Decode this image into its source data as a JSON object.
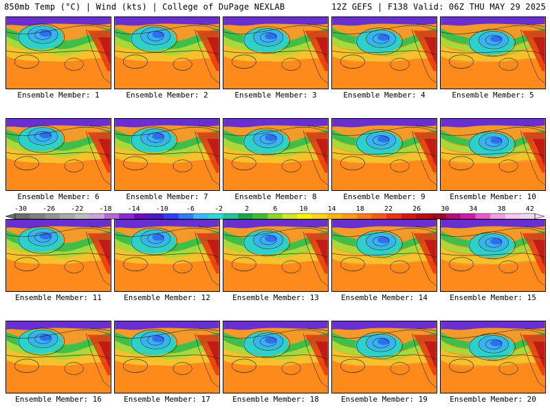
{
  "header": {
    "left": "850mb Temp (°C) | Wind (kts) | College of DuPage NEXLAB",
    "right": "12Z GEFS | F138 Valid: 06Z THU MAY 29 2025"
  },
  "members": [
    "Ensemble Member: 1",
    "Ensemble Member: 2",
    "Ensemble Member: 3",
    "Ensemble Member: 4",
    "Ensemble Member: 5",
    "Ensemble Member: 6",
    "Ensemble Member: 7",
    "Ensemble Member: 8",
    "Ensemble Member: 9",
    "Ensemble Member: 10",
    "Ensemble Member: 11",
    "Ensemble Member: 12",
    "Ensemble Member: 13",
    "Ensemble Member: 14",
    "Ensemble Member: 15",
    "Ensemble Member: 16",
    "Ensemble Member: 17",
    "Ensemble Member: 18",
    "Ensemble Member: 19",
    "Ensemble Member: 20"
  ],
  "colorbar": {
    "labels": [
      "-30",
      "-26",
      "-22",
      "-18",
      "-14",
      "-10",
      "-6",
      "-2",
      "2",
      "6",
      "10",
      "14",
      "18",
      "22",
      "26",
      "30",
      "34",
      "38",
      "42"
    ],
    "colors": [
      "#6e6e6e",
      "#808080",
      "#949494",
      "#a8a8a8",
      "#bdbdbd",
      "#c9a4de",
      "#b06ad4",
      "#8b2ad0",
      "#6a0fbf",
      "#4b18c6",
      "#2f3ff2",
      "#2f7cf5",
      "#39b8f5",
      "#2fd6d6",
      "#21c59a",
      "#16a84a",
      "#3fbf2f",
      "#8fd62a",
      "#cfe62b",
      "#fff200",
      "#ffd21f",
      "#ffb31a",
      "#ff9a1a",
      "#ff7b14",
      "#f75a10",
      "#e8350f",
      "#d21a12",
      "#b80f16",
      "#9c0c1e",
      "#b0107a",
      "#d11aa8",
      "#e85ac8",
      "#f0a0e0",
      "#f6c8ee",
      "#f0d8f4"
    ]
  }
}
